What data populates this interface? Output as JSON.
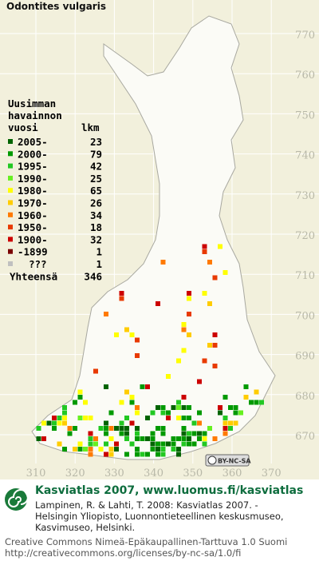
{
  "map": {
    "title": "Odontites vulgaris",
    "yticks": [
      770,
      760,
      750,
      740,
      730,
      720,
      710,
      700,
      690,
      680,
      670
    ],
    "xticks": [
      310,
      320,
      330,
      340,
      350,
      360,
      370
    ],
    "legend": {
      "header": [
        "Uusimman",
        "havainnon",
        "vuosi"
      ],
      "count_header": "lkm",
      "rows": [
        {
          "label": "2005-",
          "count": 23,
          "color": "#006400"
        },
        {
          "label": "2000-",
          "count": 79,
          "color": "#009a00"
        },
        {
          "label": "1995-",
          "count": 42,
          "color": "#22c822"
        },
        {
          "label": "1990-",
          "count": 25,
          "color": "#66f020"
        },
        {
          "label": "1980-",
          "count": 65,
          "color": "#ffff00"
        },
        {
          "label": "1970-",
          "count": 26,
          "color": "#ffcc00"
        },
        {
          "label": "1960-",
          "count": 34,
          "color": "#ff7a00"
        },
        {
          "label": "1950-",
          "count": 18,
          "color": "#e83a00"
        },
        {
          "label": "1900-",
          "count": 32,
          "color": "#cc0000"
        },
        {
          "label": "-1899",
          "count": 1,
          "color": "#7a0000"
        },
        {
          "label": "???",
          "count": 1,
          "color": "#c0c0c0"
        }
      ],
      "total_label": "Yhteensä",
      "total": 346
    },
    "license_badge": "BY-NC-SA"
  },
  "footer": {
    "heading": "Kasviatlas 2007, www.luomus.fi/kasviatlas",
    "citation": [
      "Lampinen, R. & Lahti, T. 2008: Kasviatlas 2007. -",
      "Helsingin Yliopisto, Luonnontieteellinen keskusmuseo,",
      "Kasvimuseo, Helsinki."
    ],
    "license": [
      "Creative Commons Nimeä-Epäkaupallinen-Tarttuva 1.0 Suomi",
      "http://creativecommons.org/licenses/by-nc-sa/1.0/fi"
    ]
  }
}
